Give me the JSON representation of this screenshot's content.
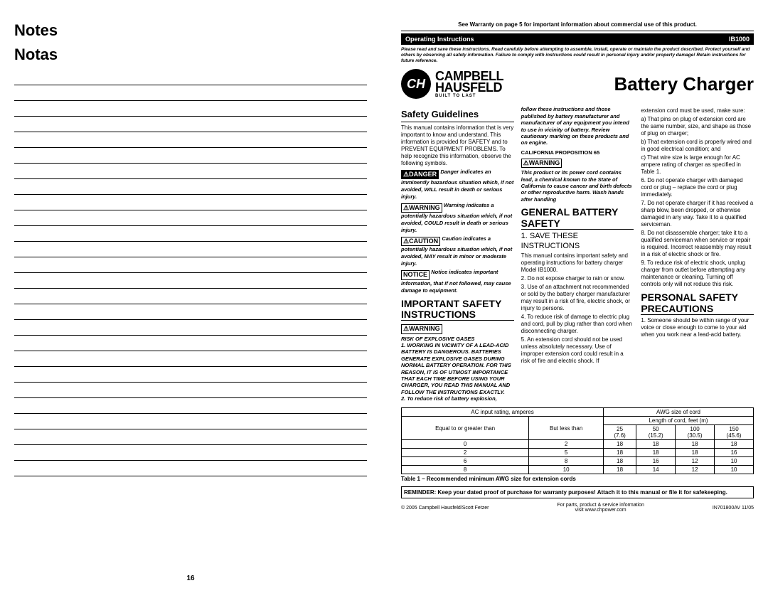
{
  "left_page": {
    "notes_en": "Notes",
    "notes_es": "Notas",
    "line_count": 26,
    "page_number": "16"
  },
  "right_page": {
    "warranty_notice": "See Warranty on page 5 for important information about commercial use of this product.",
    "black_bar_left": "Operating Instructions",
    "black_bar_right": "IB1000",
    "disclaimer": "Please read and save these instructions. Read carefully before attempting to assemble, install, operate or maintain the product described. Protect yourself and others by observing all safety information. Failure to comply with instructions could result in personal injury and/or property damage! Retain instructions for future reference.",
    "brand_line1": "CAMPBELL",
    "brand_line2": "HAUSFELD",
    "brand_tagline": "BUILT TO LAST",
    "product_title": "Battery Charger",
    "col1": {
      "heading1": "Safety Guidelines",
      "para1": "This manual contains information that is very important to know and understand. This information is provided for SAFETY and to PREVENT EQUIPMENT PROBLEMS. To help recognize this information, observe the following symbols.",
      "danger_label": "⚠DANGER",
      "danger_text": "Danger indicates an imminently hazardous situation which, if not avoided, WILL result in death or serious injury.",
      "warning_label": "⚠WARNING",
      "warning_text": "Warning indicates a potentially hazardous situation which, if not avoided, COULD result in death or serious injury.",
      "caution_label": "⚠CAUTION",
      "caution_text": "Caution indicates a potentially hazardous situation which, if not avoided, MAY result in minor or moderate injury.",
      "notice_label": "NOTICE",
      "notice_text": "Notice indicates important information, that if not followed, may cause damage to equipment.",
      "heading2": "IMPORTANT SAFETY INSTRUCTIONS",
      "warn2_label": "⚠WARNING",
      "risk_title": "RISK OF EXPLOSIVE GASES",
      "risk1": "1. WORKING IN VICINITY OF A LEAD-ACID BATTERY IS DANGEROUS. BATTERIES GENERATE EXPLOSIVE GASES DURING NORMAL BATTERY OPERATION. FOR THIS REASON, IT IS OF UTMOST IMPORTANCE THAT EACH TIME BEFORE USING YOUR CHARGER, YOU READ THIS MANUAL AND FOLLOW THE INSTRUCTIONS EXACTLY.",
      "risk2": "2. To reduce risk of battery explosion,"
    },
    "col2": {
      "para1": "follow these instructions and those published by battery manufacturer and manufacturer of any equipment you intend to use in vicinity of battery. Review cautionary marking on these products and on engine.",
      "prop65_title": "CALIFORNIA PROPOSITION 65",
      "warn_label": "⚠WARNING",
      "prop65_text": "This product or its power cord contains lead, a chemical known to the State of California to cause cancer and birth defects or other reproductive harm. Wash hands after handling",
      "heading": "GENERAL BATTERY SAFETY",
      "sub": "1. SAVE THESE INSTRUCTIONS",
      "para2": "This manual contains important safety and operating instructions for battery charger Model IB1000.",
      "para3": "2. Do not expose charger to rain or snow.",
      "para4": "3. Use of an attachment not recommended or sold by the battery charger manufacturer may result in a risk of fire, electric shock, or injury to persons.",
      "para5": "4. To reduce risk of damage to electric plug and cord, pull by plug rather than cord when disconnecting charger.",
      "para6": "5. An extension cord should not be used unless absolutely necessary. Use of improper extension cord could result in a risk of fire and electric shock. If"
    },
    "col3": {
      "para1": "extension cord must be used, make sure:",
      "para2": "a) That pins on plug of extension cord are the same number, size, and shape as those of plug on charger;",
      "para3": "b) That extension cord is properly wired and in good electrical condition; and",
      "para4": "c) That wire size is large enough for AC ampere rating of charger as specified in Table 1.",
      "para5": "6. Do not operate charger with damaged cord or plug – replace the cord or plug immediately.",
      "para6": "7. Do not operate charger if it has received a sharp blow, been dropped, or otherwise damaged in any way. Take it to a qualified serviceman.",
      "para7": "8. Do not disassemble charger; take it to a qualified serviceman when service or repair is required. Incorrect reassembly may result in a risk of electric shock or fire.",
      "para8": "9. To reduce risk of electric shock, unplug charger from outlet before attempting any maintenance or cleaning. Turning off controls only will not reduce this risk.",
      "heading": "PERSONAL SAFETY PRECAUTIONS",
      "para9": "1. Someone should be within range of your voice or close enough to come to your aid when you work near a lead-acid battery."
    },
    "table": {
      "h1": "AC input rating, amperes",
      "h2": "AWG size of cord",
      "h3": "Equal to or greater than",
      "h4": "But less than",
      "h5": "Length of cord, feet (m)",
      "c25": "25",
      "c50": "50",
      "c100": "100",
      "c150": "150",
      "m25": "(7.6)",
      "m50": "(15.2)",
      "m100": "(30.5)",
      "m150": "(45.6)",
      "r1": [
        "0",
        "2",
        "18",
        "18",
        "18",
        "18"
      ],
      "r2": [
        "2",
        "5",
        "18",
        "18",
        "18",
        "16"
      ],
      "r3": [
        "6",
        "8",
        "18",
        "16",
        "12",
        "10"
      ],
      "r4": [
        "8",
        "10",
        "18",
        "14",
        "12",
        "10"
      ],
      "caption": "Table 1 – Recommended minimum AWG size for extension cords"
    },
    "reminder": "REMINDER: Keep your dated proof of purchase for warranty purposes! Attach it to this manual or file it for safekeeping.",
    "footer": {
      "copyright": "© 2005 Campbell Hausfeld/Scott Fetzer",
      "center1": "For parts, product & service information",
      "center2": "visit www.chpower.com",
      "partno": "IN701800AV  11/05"
    }
  }
}
